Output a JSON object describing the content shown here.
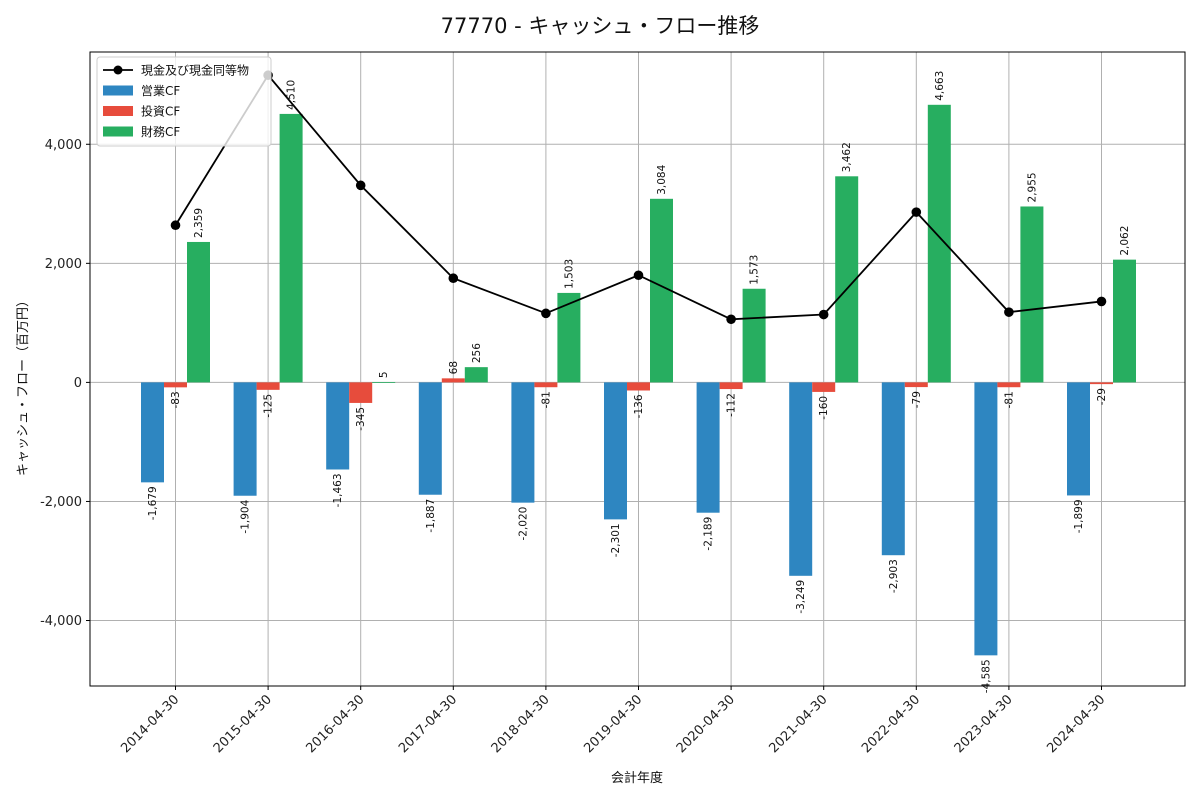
{
  "chart_data": {
    "type": "bar",
    "title": "77770 - キャッシュ・フロー推移",
    "xlabel": "会計年度",
    "ylabel": "キャッシュ・フロー（百万円）",
    "categories": [
      "2014-04-30",
      "2015-04-30",
      "2016-04-30",
      "2017-04-30",
      "2018-04-30",
      "2019-04-30",
      "2020-04-30",
      "2021-04-30",
      "2022-04-30",
      "2023-04-30",
      "2024-04-30"
    ],
    "series": [
      {
        "name": "営業CF",
        "kind": "bar",
        "color": "#2e86c1",
        "values": [
          -1679,
          -1904,
          -1463,
          -1887,
          -2020,
          -2301,
          -2189,
          -3249,
          -2903,
          -4585,
          -1899
        ],
        "labels": [
          "-1,679",
          "-1,904",
          "-1,463",
          "-1,887",
          "-2,020",
          "-2,301",
          "-2,189",
          "-3,249",
          "-2,903",
          "-4,585",
          "-1,899"
        ]
      },
      {
        "name": "投資CF",
        "kind": "bar",
        "color": "#e74c3c",
        "values": [
          -83,
          -125,
          -345,
          68,
          -81,
          -136,
          -112,
          -160,
          -79,
          -81,
          -29
        ],
        "labels": [
          "-83",
          "-125",
          "-345",
          "68",
          "-81",
          "-136",
          "-112",
          "-160",
          "-79",
          "-81",
          "-29"
        ]
      },
      {
        "name": "財務CF",
        "kind": "bar",
        "color": "#27ae60",
        "values": [
          2359,
          4510,
          5,
          256,
          1503,
          3084,
          1573,
          3462,
          4663,
          2955,
          2062
        ],
        "labels": [
          "2,359",
          "4,510",
          "5",
          "256",
          "1,503",
          "3,084",
          "1,573",
          "3,462",
          "4,663",
          "2,955",
          "2,062"
        ]
      },
      {
        "name": "現金及び現金同等物",
        "kind": "line",
        "color": "#000000",
        "values": [
          2640,
          5160,
          3310,
          1750,
          1160,
          1800,
          1060,
          1140,
          2860,
          1180,
          1360
        ]
      }
    ],
    "ylim": [
      -5100,
      5550
    ],
    "yticks": [
      -4000,
      -2000,
      0,
      2000,
      4000
    ],
    "ytick_labels": [
      "-4,000",
      "-2,000",
      "0",
      "2,000",
      "4,000"
    ],
    "grid": true,
    "legend": "top-left"
  }
}
